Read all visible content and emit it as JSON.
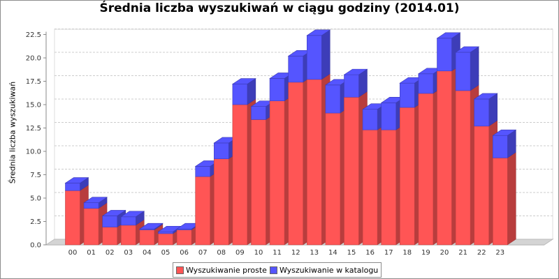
{
  "chart_data": {
    "type": "bar",
    "stacked": true,
    "title": "Średnia liczba wyszukiwań w ciągu godziny (2014.01)",
    "ylabel": "Średnia liczba wyszukiwań",
    "xlabel": "",
    "ylim": [
      0,
      22.5
    ],
    "yticks": [
      "0.0",
      "2.5",
      "5.0",
      "7.5",
      "10.0",
      "12.5",
      "15.0",
      "17.5",
      "20.0",
      "22.5"
    ],
    "grid": true,
    "legend_position": "bottom",
    "categories": [
      "00",
      "01",
      "02",
      "03",
      "04",
      "05",
      "06",
      "07",
      "08",
      "09",
      "10",
      "11",
      "12",
      "13",
      "14",
      "15",
      "16",
      "17",
      "18",
      "19",
      "20",
      "21",
      "22",
      "23"
    ],
    "series": [
      {
        "name": "Wyszukiwanie proste",
        "color": "#ff5555",
        "values": [
          5.8,
          3.9,
          1.9,
          2.1,
          1.6,
          1.2,
          1.6,
          7.3,
          9.2,
          15.0,
          13.4,
          15.4,
          17.4,
          17.7,
          14.1,
          15.8,
          12.3,
          12.3,
          14.7,
          16.2,
          18.6,
          16.5,
          12.7,
          9.3
        ]
      },
      {
        "name": "Wyszukiwanie w katalogu",
        "color": "#5555ff",
        "values": [
          0.8,
          0.6,
          1.2,
          0.9,
          0.1,
          0.2,
          0.1,
          1.1,
          1.7,
          2.2,
          1.4,
          2.4,
          2.8,
          4.7,
          3.0,
          2.4,
          2.2,
          2.9,
          2.6,
          2.1,
          3.5,
          4.1,
          2.9,
          2.4
        ]
      }
    ]
  }
}
